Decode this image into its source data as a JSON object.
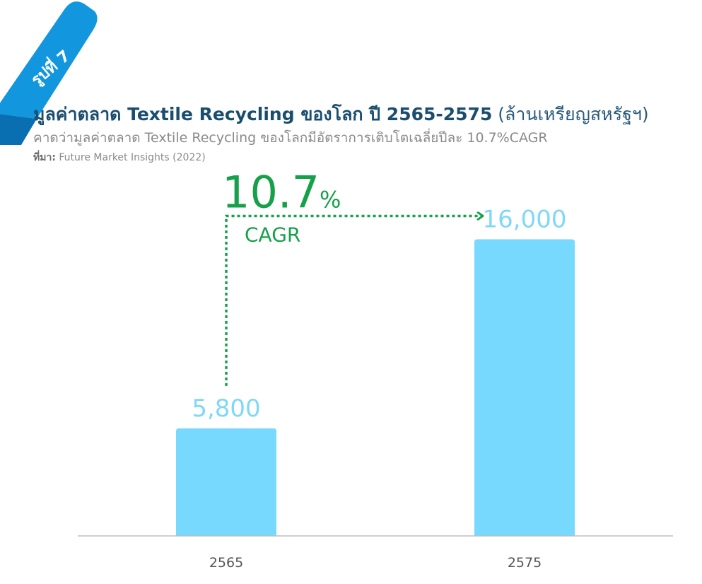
{
  "figure": {
    "badge": "รูปที่ 7",
    "title": "มูลค่าตลาด Textile Recycling ของโลก ปี 2565-2575",
    "title_unit": "(ล้านเหรียญสหรัฐฯ)",
    "subtitle": "คาดว่ามูลค่าตลาด Textile Recycling ของโลกมีอัตราการเติบโตเฉลี่ยปีละ 10.7%CAGR",
    "source_label": "ที่มา:",
    "source_text": "Future Market Insights (2022)"
  },
  "colors": {
    "bar": "#77d9fd",
    "data_label": "#7fd8f8",
    "cagr": "#17a04a",
    "title": "#1a4d6e",
    "ribbon": "#0f8fd6",
    "axis": "#bdbdbd"
  },
  "annotation": {
    "value": "10.7",
    "unit": "%",
    "label": "CAGR"
  },
  "chart_data": {
    "type": "bar",
    "categories": [
      "2565",
      "2575"
    ],
    "values": [
      5800,
      16000
    ],
    "data_labels": [
      "5,800",
      "16,000"
    ],
    "ylim": [
      0,
      18000
    ],
    "grid": false,
    "legend": "none"
  }
}
